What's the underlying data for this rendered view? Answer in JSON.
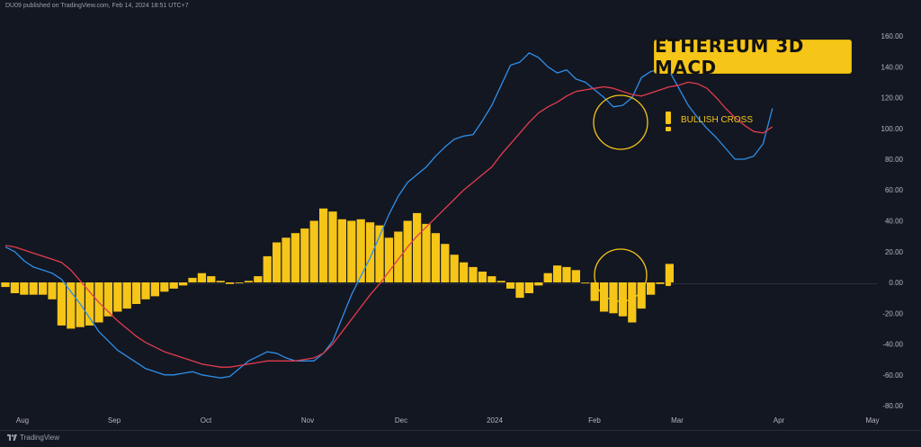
{
  "header": {
    "publisher_text": "DU09 published on TradingView.com, Feb 14, 2024 18:51 UTC+7"
  },
  "footer": {
    "brand": "TradingView"
  },
  "chart_data": {
    "type": "line",
    "title": "ETHEREUM 3D MACD",
    "annotation": "BULLISH CROSS",
    "y_ticks": [
      "160.00",
      "140.00",
      "120.00",
      "100.00",
      "80.00",
      "60.00",
      "40.00",
      "20.00",
      "0.00",
      "-20.00",
      "-40.00",
      "-60.00",
      "-80.00"
    ],
    "ylim": [
      -80,
      160
    ],
    "x_ticks": [
      "Aug",
      "Sep",
      "Oct",
      "Nov",
      "Dec",
      "2024",
      "Feb",
      "Mar",
      "Apr",
      "May"
    ],
    "series": [
      {
        "color": "#2f8ee8",
        "values": [
          23,
          20,
          14,
          10,
          8,
          6,
          2,
          -6,
          -14,
          -23,
          -32,
          -38,
          -44,
          -48,
          -52,
          -56,
          -58,
          -60,
          -60,
          -59,
          -58,
          -60,
          -61,
          -62,
          -61,
          -56,
          -51,
          -48,
          -45,
          -46,
          -49,
          -51,
          -51,
          -51,
          -46,
          -38,
          -23,
          -8,
          4,
          16,
          30,
          44,
          56,
          65,
          70,
          75,
          82,
          88,
          93,
          95,
          96,
          105,
          115,
          128,
          141,
          143,
          149,
          146,
          140,
          136,
          138,
          132,
          130,
          125,
          120,
          114,
          115,
          120,
          133,
          137,
          138,
          137,
          126,
          115,
          107,
          100,
          94,
          87,
          80,
          80,
          82,
          90,
          113
        ]
      },
      {
        "color": "#e23c4e",
        "values": [
          24,
          23,
          21,
          19,
          17,
          15,
          13,
          8,
          1,
          -6,
          -13,
          -19,
          -25,
          -30,
          -35,
          -39,
          -42,
          -45,
          -47,
          -49,
          -51,
          -53,
          -54,
          -55,
          -55,
          -54,
          -53,
          -52,
          -51,
          -51,
          -51,
          -51,
          -50,
          -49,
          -46,
          -40,
          -32,
          -24,
          -16,
          -8,
          -1,
          7,
          15,
          23,
          30,
          36,
          42,
          48,
          54,
          60,
          65,
          70,
          75,
          83,
          90,
          97,
          104,
          110,
          114,
          117,
          121,
          124,
          125,
          126,
          127,
          126,
          124,
          122,
          121,
          123,
          125,
          127,
          128,
          130,
          129,
          126,
          120,
          113,
          107,
          102,
          98,
          97,
          101
        ]
      }
    ],
    "histogram": [
      -3,
      -7,
      -8,
      -8,
      -8,
      -11,
      -28,
      -30,
      -29,
      -28,
      -26,
      -22,
      -19,
      -17,
      -14,
      -11,
      -9,
      -6,
      -4,
      -2,
      3,
      6,
      4,
      1,
      -1,
      0,
      1,
      4,
      17,
      26,
      29,
      32,
      35,
      40,
      48,
      46,
      41,
      40,
      41,
      39,
      37,
      29,
      33,
      40,
      45,
      38,
      32,
      25,
      18,
      13,
      10,
      7,
      4,
      1,
      -4,
      -10,
      -7,
      -2,
      6,
      11,
      10,
      8,
      0,
      -12,
      -19,
      -20,
      -22,
      -26,
      -17,
      -8,
      -1,
      12
    ],
    "histogram_color": "#f5c518",
    "grid": false
  }
}
